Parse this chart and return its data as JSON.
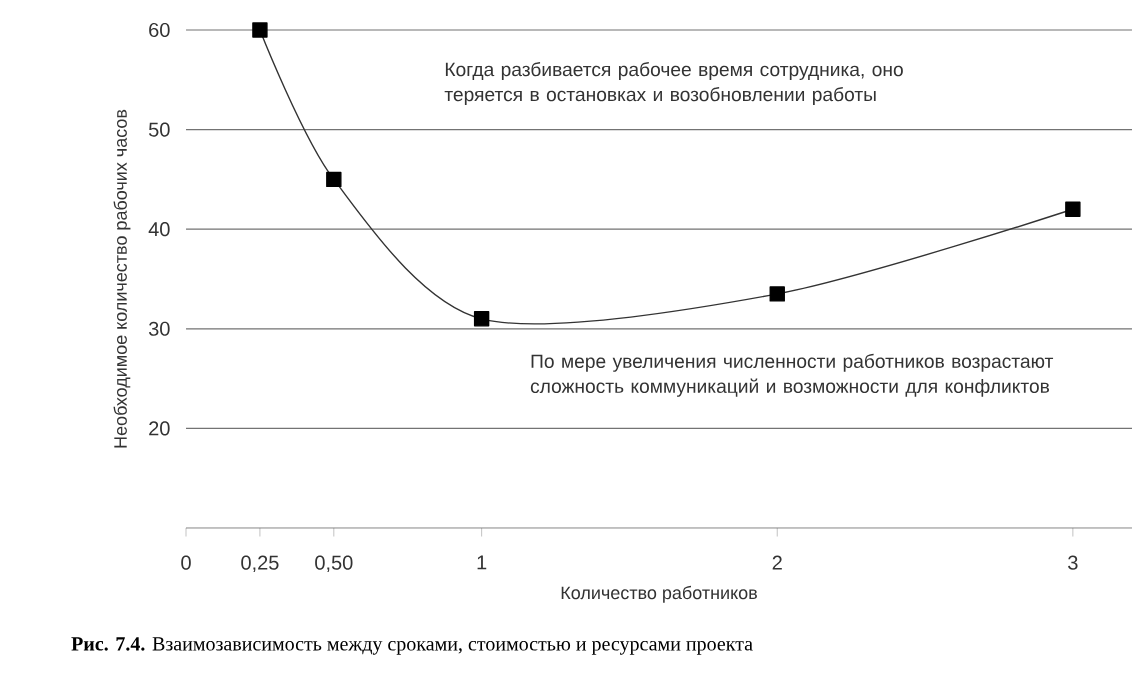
{
  "chart_data": {
    "type": "line",
    "xlabel": "Количество работников",
    "ylabel": "Необходимое количество рабочих часов",
    "x": [
      0.25,
      0.5,
      1,
      2,
      3
    ],
    "series": [
      {
        "color": "#333333",
        "values": [
          60,
          45,
          31,
          33.5,
          42
        ]
      }
    ],
    "xlim": [
      0,
      3.2
    ],
    "xticks": [
      0,
      {
        "value": 0.25,
        "label": "0,25"
      },
      {
        "value": 0.5,
        "label": "0,50"
      },
      1,
      2,
      3
    ],
    "ylim": [
      10,
      60
    ],
    "yticks": [
      20,
      30,
      40,
      50,
      60
    ],
    "grid": "y",
    "marker": "square",
    "line_style": "solid",
    "annotations": [
      "Когда разбивается рабочее время сотрудника, оно теряется в остановках и возобновлении работы",
      "По мере увеличения численности работников возрастают сложность коммуникаций и возможности для конфликтов",
      "**Рис. 7.4.** Взаимозависимость между сроками, стоимостью и ресурсами проекта"
    ]
  }
}
